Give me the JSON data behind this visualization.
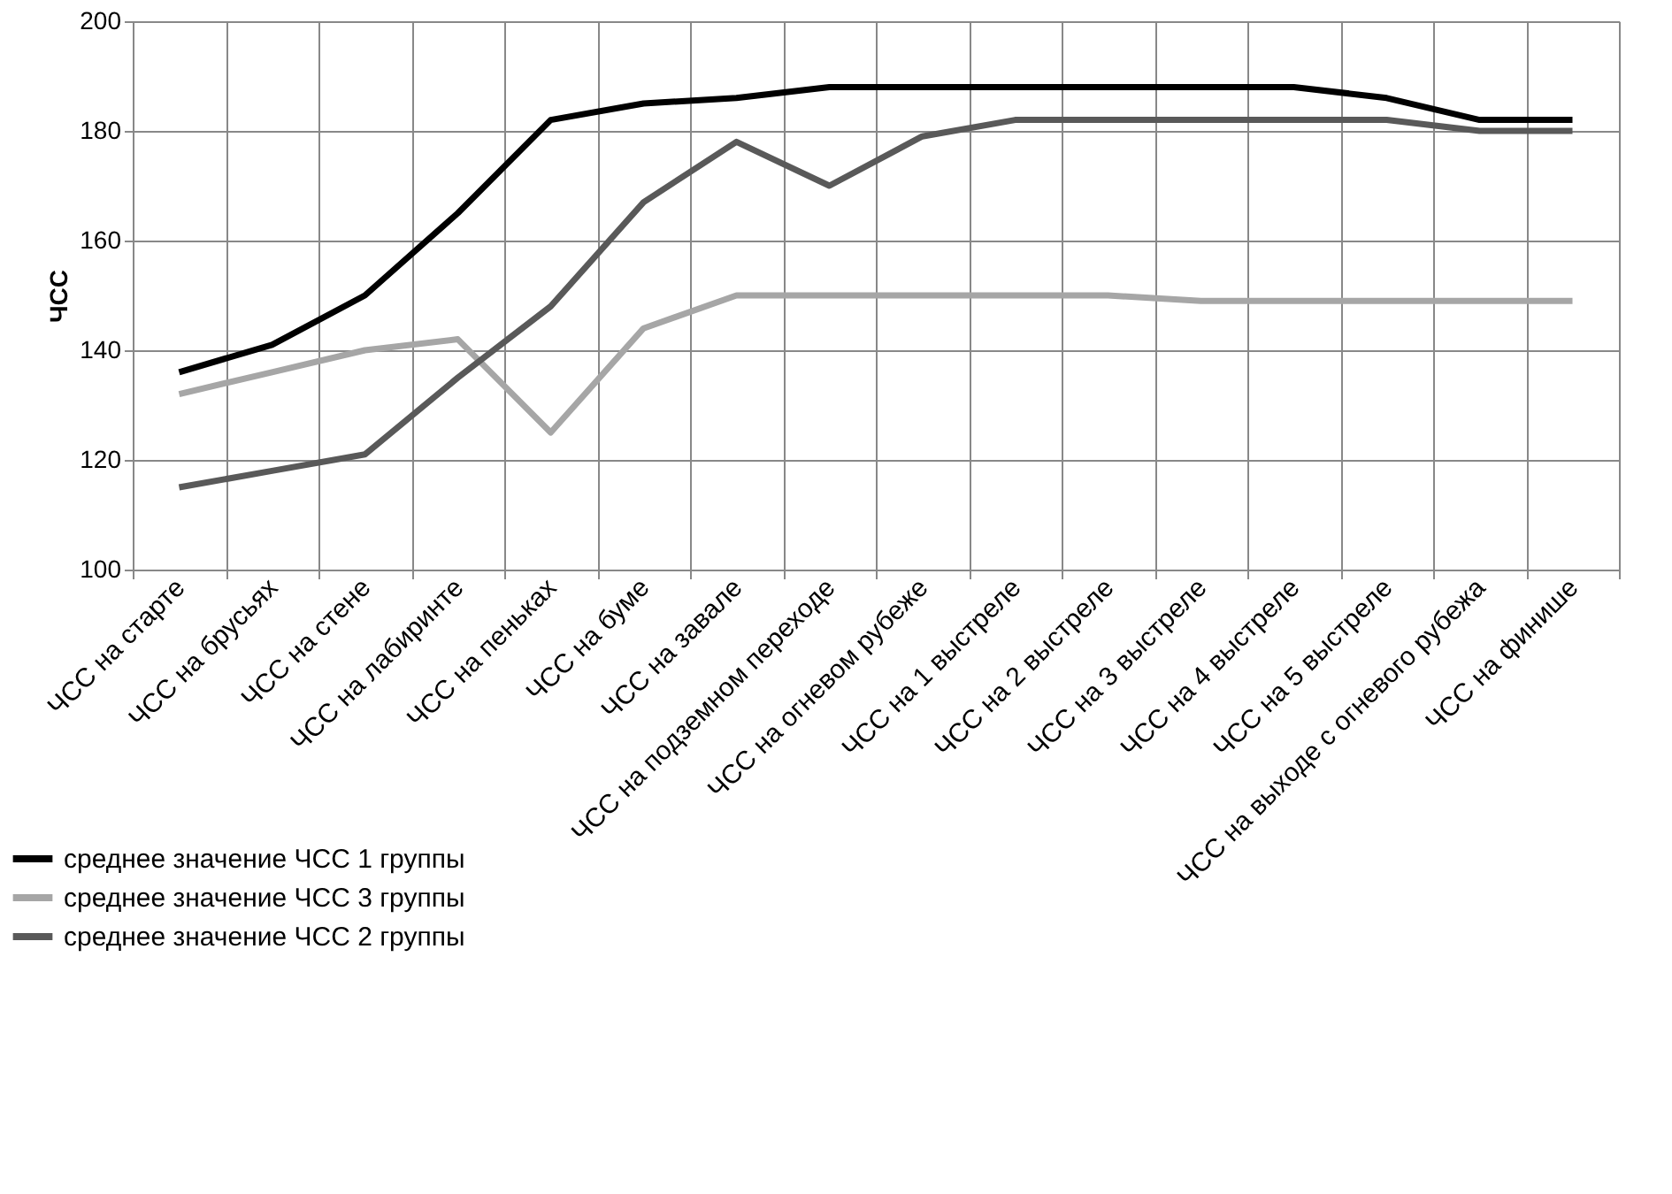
{
  "chart_data": {
    "type": "line",
    "ylabel": "ЧСС",
    "categories": [
      "ЧСС на старте",
      "ЧСС на брусьях",
      "ЧСС на стене",
      "ЧСС на лабиринте",
      "ЧСС на пеньках",
      "ЧСС на буме",
      "ЧСС на завале",
      "ЧСС на подземном переходе",
      "ЧСС на огневом рубеже",
      "ЧСС на 1 выстреле",
      "ЧСС на 2 выстреле",
      "ЧСС на 3 выстреле",
      "ЧСС на 4 выстреле",
      "ЧСС на 5 выстреле",
      "ЧСС на выходе с огневого рубежа",
      "ЧСС на финише"
    ],
    "series": [
      {
        "name": "среднее значение ЧСС 1 группы",
        "color": "#000000",
        "values": [
          136,
          141,
          150,
          165,
          182,
          185,
          186,
          188,
          188,
          188,
          188,
          188,
          188,
          186,
          182,
          182
        ]
      },
      {
        "name": "среднее значение ЧСС 3 группы",
        "color": "#a6a6a6",
        "values": [
          132,
          136,
          140,
          142,
          125,
          144,
          150,
          150,
          150,
          150,
          150,
          149,
          149,
          149,
          149,
          149
        ]
      },
      {
        "name": "среднее значение ЧСС 2 группы",
        "color": "#595959",
        "values": [
          115,
          118,
          121,
          135,
          148,
          167,
          178,
          170,
          179,
          182,
          182,
          182,
          182,
          182,
          180,
          180
        ]
      }
    ],
    "ylim": [
      100,
      200
    ],
    "yticks": [
      100,
      120,
      140,
      160,
      180,
      200
    ],
    "grid": true,
    "legend": "bottom left",
    "marker": "none",
    "line_style": "solid"
  }
}
